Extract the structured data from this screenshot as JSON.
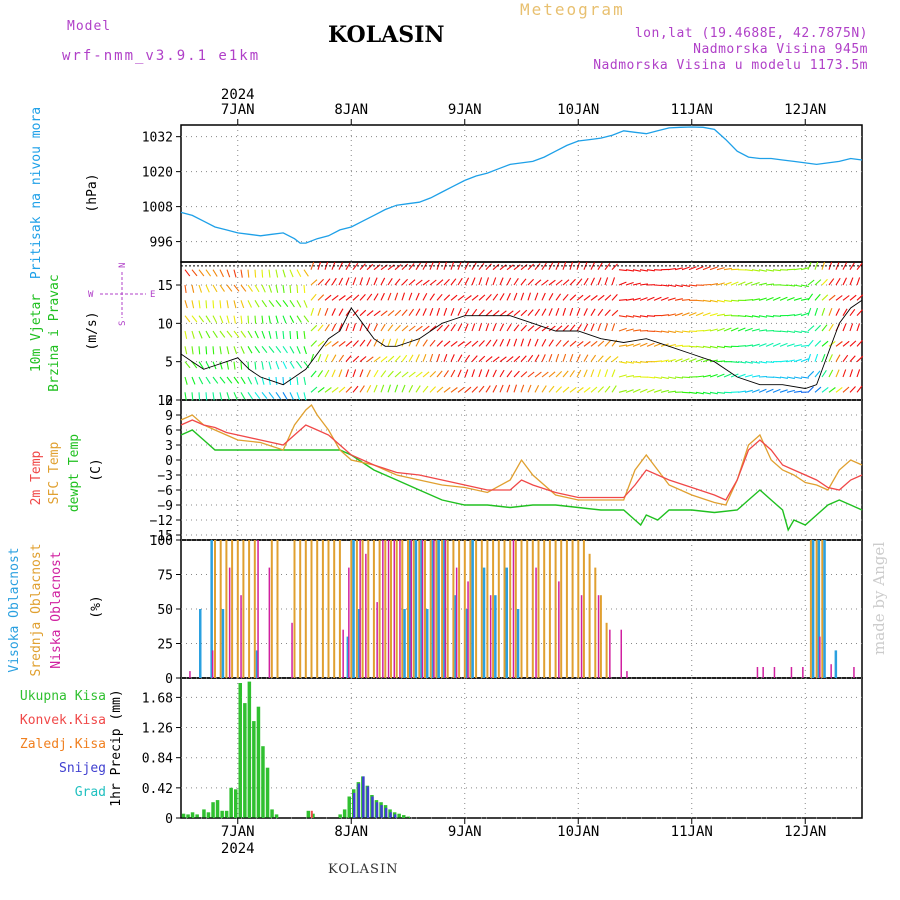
{
  "header": {
    "model_label": "Model",
    "model_name": "wrf-nmm_v3.9.1  e1km",
    "station": "KOLASIN",
    "meteogram_label": "Meteogram",
    "lonlat": "lon,lat (19.4688E, 42.7875N)",
    "altitude": "Nadmorska Visina 945m",
    "model_altitude": "Nadmorska Visina u modelu 1173.5m"
  },
  "footer": {
    "station": "KOLASIN",
    "watermark": "made by Angel"
  },
  "time_axis": {
    "year": "2024",
    "days": [
      "7JAN",
      "8JAN",
      "9JAN",
      "10JAN",
      "11JAN",
      "12JAN"
    ]
  },
  "colors": {
    "pressure": "#1ea0e8",
    "temp2m": "#f04848",
    "sfc_temp": "#e0a030",
    "dewpt": "#20c020",
    "cloud_high": "#2aa0e0",
    "cloud_mid": "#e0a030",
    "cloud_low": "#d020a0",
    "precip_total": "#30c030",
    "precip_snow": "#4040d0",
    "precip_conv": "#f04848"
  },
  "chart_data": [
    {
      "type": "line",
      "panel": "pressure",
      "ylabel_left": "Pritisak na nivou mora",
      "ylabel_units": "(hPa)",
      "yticks": [
        "996",
        "1008",
        "1020",
        "1032"
      ],
      "ylim": [
        989,
        1036
      ],
      "xlim": [
        6.5,
        12.5
      ],
      "series": [
        {
          "values_x": [
            6.5,
            6.6,
            6.7,
            6.8,
            6.9,
            7.0,
            7.1,
            7.2,
            7.3,
            7.4,
            7.5,
            7.55,
            7.6,
            7.7,
            7.8,
            7.9,
            8.0,
            8.1,
            8.2,
            8.3,
            8.4,
            8.5,
            8.6,
            8.7,
            8.8,
            8.9,
            9.0,
            9.1,
            9.2,
            9.3,
            9.4,
            9.5,
            9.6,
            9.7,
            9.8,
            9.9,
            10.0,
            10.1,
            10.2,
            10.3,
            10.4,
            10.5,
            10.6,
            10.7,
            10.8,
            10.9,
            11.0,
            11.1,
            11.2,
            11.3,
            11.4,
            11.5,
            11.6,
            11.7,
            11.8,
            11.9,
            12.0,
            12.1,
            12.2,
            12.3,
            12.4,
            12.5
          ],
          "values_y": [
            1006,
            1005,
            1003,
            1001,
            1000,
            999,
            998.5,
            998,
            998.5,
            999,
            997,
            995.5,
            995.5,
            997,
            998,
            1000,
            1001,
            1003,
            1005,
            1007,
            1008.5,
            1009,
            1009.5,
            1011,
            1013,
            1015,
            1017,
            1018.5,
            1019.5,
            1021,
            1022.5,
            1023,
            1023.5,
            1025,
            1027,
            1029,
            1030.5,
            1031,
            1031.5,
            1032.5,
            1034,
            1033.5,
            1033,
            1034,
            1035,
            1035.2,
            1035.3,
            1035.2,
            1034.5,
            1031,
            1027,
            1025,
            1024.5,
            1024.5,
            1024,
            1023.5,
            1023,
            1022.5,
            1023,
            1023.5,
            1024.5,
            1024
          ]
        }
      ]
    },
    {
      "type": "line",
      "panel": "wind",
      "ylabel_left": "10m Vjetar Brzina i Pravac",
      "ylabel_units": "(m/s)",
      "compass": {
        "n": "N",
        "s": "S",
        "w": "W",
        "e": "E"
      },
      "yticks": [
        "0",
        "5",
        "10",
        "15"
      ],
      "ylim": [
        0,
        18
      ],
      "xlim": [
        6.5,
        12.5
      ],
      "series": [
        {
          "name": "speed",
          "values_x": [
            6.5,
            6.6,
            6.7,
            6.8,
            6.9,
            7.0,
            7.1,
            7.2,
            7.3,
            7.4,
            7.5,
            7.6,
            7.7,
            7.8,
            7.9,
            8.0,
            8.1,
            8.2,
            8.3,
            8.4,
            8.5,
            8.6,
            8.7,
            8.8,
            8.9,
            9.0,
            9.2,
            9.4,
            9.6,
            9.8,
            10.0,
            10.2,
            10.4,
            10.6,
            10.8,
            11.0,
            11.2,
            11.4,
            11.6,
            11.8,
            12.0,
            12.1,
            12.2,
            12.3,
            12.4,
            12.5
          ],
          "values_y": [
            6,
            5,
            4,
            4.5,
            5,
            5.5,
            4,
            3,
            2.5,
            2,
            3,
            4,
            6,
            8,
            9,
            12,
            10,
            8,
            7,
            7,
            7.5,
            8,
            9,
            10,
            10.5,
            11,
            11,
            11,
            10,
            9,
            9,
            8,
            7.5,
            8,
            7,
            6,
            5,
            3,
            2,
            2,
            1.5,
            2,
            6,
            10,
            12,
            13
          ]
        }
      ]
    },
    {
      "type": "line",
      "panel": "temperature",
      "ylabel_left": [
        "2m Temp",
        "SFC Temp",
        "dewpt Temp"
      ],
      "ylabel_units": "(C)",
      "yticks": [
        "12",
        "9",
        "6",
        "3",
        "0",
        "−3",
        "−6",
        "−9",
        "−12",
        "−15"
      ],
      "ylim": [
        -16,
        12
      ],
      "xlim": [
        6.5,
        12.5
      ],
      "series": [
        {
          "name": "2m Temp",
          "values_x": [
            6.5,
            6.6,
            6.7,
            6.8,
            6.9,
            7.0,
            7.2,
            7.4,
            7.5,
            7.6,
            7.7,
            7.8,
            7.9,
            8.0,
            8.2,
            8.4,
            8.6,
            8.8,
            9.0,
            9.2,
            9.4,
            9.5,
            9.6,
            9.8,
            10.0,
            10.2,
            10.4,
            10.5,
            10.6,
            10.8,
            11.0,
            11.2,
            11.3,
            11.4,
            11.5,
            11.6,
            11.7,
            11.8,
            11.9,
            12.0,
            12.1,
            12.2,
            12.3,
            12.4,
            12.5
          ],
          "values_y": [
            7,
            8,
            7,
            6.5,
            5.5,
            5,
            4,
            3,
            5,
            7,
            6,
            5,
            3,
            1,
            -1,
            -2.5,
            -3,
            -4,
            -5,
            -6,
            -6,
            -4,
            -5,
            -6.5,
            -7.5,
            -7.5,
            -7.5,
            -5,
            -2,
            -4,
            -5.5,
            -7,
            -8,
            -4,
            2,
            4,
            2,
            -1,
            -2,
            -3,
            -4,
            -5.5,
            -6,
            -4,
            -3
          ]
        },
        {
          "name": "SFC Temp",
          "values_x": [
            6.5,
            6.6,
            6.7,
            6.8,
            6.9,
            7.0,
            7.2,
            7.4,
            7.5,
            7.6,
            7.65,
            7.7,
            7.8,
            7.9,
            8.0,
            8.2,
            8.4,
            8.6,
            8.8,
            9.0,
            9.2,
            9.4,
            9.5,
            9.6,
            9.8,
            10.0,
            10.2,
            10.4,
            10.5,
            10.6,
            10.8,
            11.0,
            11.2,
            11.3,
            11.4,
            11.5,
            11.6,
            11.7,
            11.8,
            11.9,
            12.0,
            12.1,
            12.2,
            12.3,
            12.4,
            12.5
          ],
          "values_y": [
            8,
            9,
            7,
            6,
            5,
            4,
            3.5,
            2,
            7,
            10,
            11,
            9,
            6,
            2,
            0,
            -1,
            -3,
            -4,
            -5,
            -5.5,
            -6.5,
            -4,
            0,
            -3,
            -7,
            -8,
            -8,
            -8,
            -2,
            1,
            -5,
            -7,
            -8.5,
            -9,
            -4,
            3,
            5,
            0,
            -2,
            -3,
            -4.5,
            -5,
            -6,
            -2,
            0,
            -1
          ]
        },
        {
          "name": "dewpt Temp",
          "values_x": [
            6.5,
            6.6,
            6.7,
            6.8,
            6.9,
            7.0,
            7.2,
            7.4,
            7.6,
            7.8,
            7.9,
            8.0,
            8.2,
            8.4,
            8.6,
            8.8,
            9.0,
            9.2,
            9.4,
            9.6,
            9.8,
            10.0,
            10.2,
            10.4,
            10.5,
            10.55,
            10.6,
            10.7,
            10.8,
            11.0,
            11.2,
            11.4,
            11.5,
            11.6,
            11.7,
            11.8,
            11.85,
            11.9,
            12.0,
            12.1,
            12.2,
            12.3,
            12.4,
            12.5
          ],
          "values_y": [
            5,
            6,
            4,
            2,
            2,
            2,
            2,
            2,
            2,
            2,
            2,
            1,
            -2,
            -4,
            -6,
            -8,
            -9,
            -9,
            -9.5,
            -9,
            -9,
            -9.5,
            -10,
            -10,
            -12,
            -13,
            -11,
            -12,
            -10,
            -10,
            -10.5,
            -10,
            -8,
            -6,
            -8,
            -10,
            -14,
            -12,
            -13,
            -11,
            -9,
            -8,
            -9,
            -10
          ]
        }
      ]
    },
    {
      "type": "bar",
      "panel": "clouds",
      "ylabel_left": [
        "Visoka Oblacnost",
        "Srednja Oblacnost",
        "Niska Oblacnost"
      ],
      "ylabel_units": "(%)",
      "yticks": [
        "0",
        "25",
        "50",
        "75",
        "100"
      ],
      "ylim": [
        0,
        100
      ],
      "xlim": [
        6.5,
        12.5
      ],
      "series": [
        {
          "name": "Visoka Oblacnost",
          "x": [
            6.65,
            6.75,
            6.85,
            7.15,
            7.95,
            8.0,
            8.05,
            8.45,
            8.5,
            8.55,
            8.6,
            8.65,
            8.7,
            8.75,
            8.8,
            8.9,
            9.0,
            9.05,
            9.15,
            9.25,
            9.35,
            9.45,
            12.05,
            12.1,
            12.15,
            12.25
          ],
          "values": [
            50,
            100,
            50,
            20,
            30,
            100,
            50,
            50,
            100,
            100,
            100,
            50,
            100,
            100,
            100,
            60,
            50,
            100,
            80,
            60,
            80,
            50,
            100,
            100,
            100,
            20
          ]
        },
        {
          "name": "Srednja Oblacnost",
          "x": [
            6.8,
            6.85,
            6.9,
            6.95,
            7.0,
            7.05,
            7.1,
            7.15,
            7.3,
            7.35,
            7.5,
            7.55,
            7.6,
            7.65,
            7.7,
            7.75,
            7.8,
            7.85,
            7.9,
            8.0,
            8.05,
            8.1,
            8.15,
            8.2,
            8.25,
            8.3,
            8.35,
            8.4,
            8.45,
            8.5,
            8.55,
            8.6,
            8.65,
            8.7,
            8.75,
            8.8,
            8.85,
            8.9,
            8.95,
            9.0,
            9.05,
            9.1,
            9.15,
            9.2,
            9.25,
            9.3,
            9.35,
            9.4,
            9.45,
            9.5,
            9.55,
            9.6,
            9.65,
            9.7,
            9.75,
            9.8,
            9.85,
            9.9,
            9.95,
            10.0,
            10.05,
            10.1,
            10.15,
            10.2,
            10.25,
            12.05,
            12.1,
            12.15
          ],
          "values": [
            100,
            100,
            100,
            100,
            100,
            100,
            100,
            100,
            100,
            100,
            100,
            100,
            100,
            100,
            100,
            100,
            100,
            100,
            100,
            100,
            100,
            100,
            100,
            100,
            100,
            100,
            100,
            100,
            100,
            100,
            100,
            100,
            100,
            100,
            100,
            100,
            100,
            100,
            100,
            100,
            100,
            100,
            100,
            100,
            100,
            100,
            100,
            100,
            100,
            100,
            100,
            100,
            100,
            100,
            100,
            100,
            100,
            100,
            100,
            100,
            100,
            90,
            80,
            60,
            40,
            100,
            100,
            100
          ]
        },
        {
          "name": "Niska Oblacnost",
          "x": [
            6.55,
            6.75,
            6.9,
            7.0,
            7.15,
            7.25,
            7.45,
            7.9,
            7.95,
            8.05,
            8.1,
            8.2,
            8.25,
            8.3,
            8.35,
            8.4,
            8.5,
            8.6,
            8.7,
            8.8,
            8.9,
            9.0,
            9.2,
            9.4,
            9.6,
            9.8,
            10.0,
            10.15,
            10.25,
            10.35,
            10.4,
            11.55,
            11.6,
            11.7,
            11.85,
            11.95,
            12.1,
            12.2,
            12.4
          ],
          "values": [
            5,
            20,
            80,
            60,
            100,
            80,
            40,
            35,
            80,
            100,
            90,
            55,
            100,
            100,
            100,
            100,
            100,
            100,
            100,
            100,
            80,
            70,
            60,
            100,
            80,
            70,
            60,
            60,
            35,
            35,
            5,
            8,
            8,
            8,
            8,
            8,
            30,
            10,
            8
          ]
        }
      ]
    },
    {
      "type": "bar",
      "panel": "precipitation",
      "ylabel_left": [
        "Ukupna Kisa",
        "Konvek.Kisa",
        "Zaledj.Kisa",
        "Snijeg",
        "Grad"
      ],
      "ylabel_units": "1hr Precip (mm)",
      "yticks": [
        "0",
        "0.42",
        "0.84",
        "1.26",
        "1.68"
      ],
      "ylim": [
        0,
        1.95
      ],
      "xlim": [
        6.5,
        12.5
      ],
      "series": [
        {
          "name": "Ukupna Kisa",
          "x": [
            6.52,
            6.56,
            6.6,
            6.64,
            6.7,
            6.74,
            6.78,
            6.82,
            6.86,
            6.9,
            6.94,
            6.98,
            7.02,
            7.06,
            7.1,
            7.14,
            7.18,
            7.22,
            7.26,
            7.3,
            7.34,
            7.62,
            7.66,
            7.9,
            7.94,
            7.98,
            8.02,
            8.06,
            8.1,
            8.14,
            8.18,
            8.22,
            8.26,
            8.3,
            8.34,
            8.38,
            8.42,
            8.46,
            8.5
          ],
          "values": [
            0.06,
            0.05,
            0.08,
            0.05,
            0.12,
            0.08,
            0.22,
            0.25,
            0.1,
            0.1,
            0.42,
            0.4,
            1.88,
            1.6,
            1.9,
            1.35,
            1.55,
            1.0,
            0.7,
            0.12,
            0.05,
            0.1,
            0.06,
            0.05,
            0.12,
            0.3,
            0.4,
            0.5,
            0.58,
            0.45,
            0.32,
            0.25,
            0.22,
            0.18,
            0.12,
            0.08,
            0.06,
            0.04,
            0.02
          ]
        },
        {
          "name": "Snijeg",
          "x": [
            8.02,
            8.06,
            8.1,
            8.14,
            8.18,
            8.22,
            8.26,
            8.3,
            8.34,
            8.38
          ],
          "values": [
            0.35,
            0.48,
            0.58,
            0.44,
            0.3,
            0.22,
            0.18,
            0.14,
            0.08,
            0.05
          ]
        },
        {
          "name": "Konvek.Kisa",
          "x": [
            7.63
          ],
          "values": [
            0.1
          ]
        }
      ]
    }
  ]
}
